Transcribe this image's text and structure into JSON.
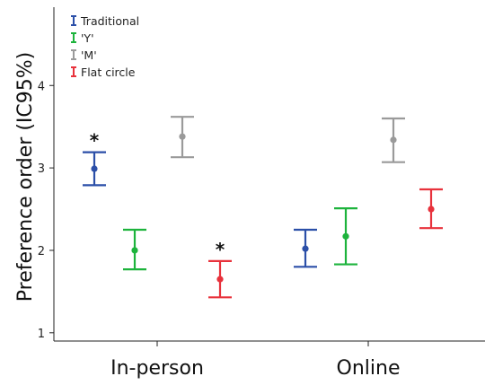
{
  "chart_data": {
    "type": "errorbar",
    "ylabel": "Preference order (IC95%)",
    "ylim": [
      0.9,
      4.95
    ],
    "yticks": [
      1,
      2,
      3,
      4
    ],
    "categories": [
      "In-person",
      "Online"
    ],
    "legend_position": "top-left",
    "grid": false,
    "series": [
      {
        "name": "Traditional",
        "color": "#2B4FA8",
        "points": [
          {
            "category": "In-person",
            "mean": 2.99,
            "lower": 2.79,
            "upper": 3.19,
            "annotation": "*"
          },
          {
            "category": "Online",
            "mean": 2.02,
            "lower": 1.8,
            "upper": 2.25
          }
        ]
      },
      {
        "name": "'Y'",
        "color": "#1DB33C",
        "points": [
          {
            "category": "In-person",
            "mean": 2.0,
            "lower": 1.77,
            "upper": 2.25
          },
          {
            "category": "Online",
            "mean": 2.17,
            "lower": 1.83,
            "upper": 2.51
          }
        ]
      },
      {
        "name": "'M'",
        "color": "#9A9A9A",
        "points": [
          {
            "category": "In-person",
            "mean": 3.38,
            "lower": 3.13,
            "upper": 3.62
          },
          {
            "category": "Online",
            "mean": 3.34,
            "lower": 3.07,
            "upper": 3.6
          }
        ]
      },
      {
        "name": "Flat circle",
        "color": "#E8323C",
        "points": [
          {
            "category": "In-person",
            "mean": 1.65,
            "lower": 1.43,
            "upper": 1.87,
            "annotation": "*"
          },
          {
            "category": "Online",
            "mean": 2.5,
            "lower": 2.27,
            "upper": 2.74
          }
        ]
      }
    ]
  }
}
